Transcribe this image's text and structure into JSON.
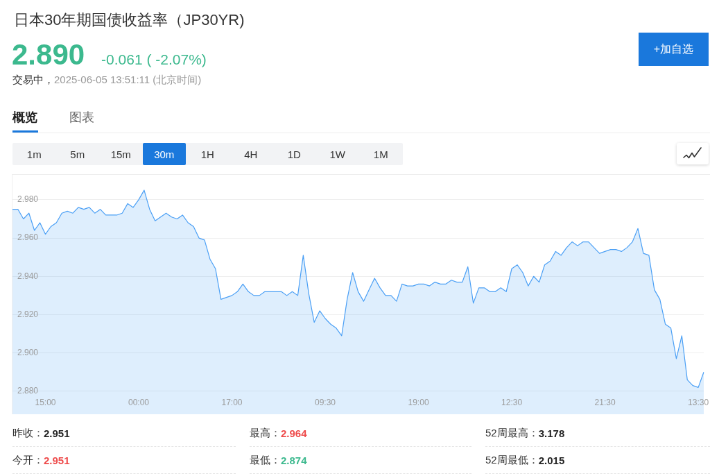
{
  "chart_data": {
    "type": "area",
    "title": "日本30年期国债收益率（JP30YR)",
    "annotations": [
      "2.890",
      "-0.061 ( -2.07%)",
      "交易中，",
      "2025-06-05 13:51:11 (北京时间)",
      "+加自选",
      "概览",
      "图表",
      "1m",
      "5m",
      "15m",
      "30m",
      "1H",
      "4H",
      "1D",
      "1W",
      "1M",
      "昨收：",
      "2.951",
      "最高：",
      "2.964",
      "52周最高：",
      "3.178",
      "今开：",
      "2.951",
      "最低：",
      "2.874",
      "52周最低：",
      "2.015"
    ],
    "categories": [
      null,
      null,
      null,
      null,
      null,
      null,
      "15:00",
      null,
      null,
      null,
      null,
      null,
      null,
      null,
      null,
      null,
      null,
      null,
      null,
      null,
      null,
      null,
      null,
      "00:00",
      null,
      null,
      null,
      null,
      null,
      null,
      null,
      null,
      null,
      null,
      null,
      null,
      null,
      null,
      null,
      null,
      "17:00",
      null,
      null,
      null,
      null,
      null,
      null,
      null,
      null,
      null,
      null,
      null,
      null,
      null,
      null,
      null,
      null,
      "09:30",
      null,
      null,
      null,
      null,
      null,
      null,
      null,
      null,
      null,
      null,
      null,
      null,
      null,
      null,
      null,
      null,
      "19:00",
      null,
      null,
      null,
      null,
      null,
      null,
      null,
      null,
      null,
      null,
      null,
      null,
      null,
      null,
      null,
      null,
      "12:30",
      null,
      null,
      null,
      null,
      null,
      null,
      null,
      null,
      null,
      null,
      null,
      null,
      null,
      null,
      null,
      null,
      "21:30",
      null,
      null,
      null,
      null,
      null,
      null,
      null,
      null,
      null,
      null,
      null,
      null,
      null,
      null,
      null,
      null,
      "13:30",
      null
    ],
    "series": [
      {
        "color": "#4a9ff5",
        "values": [
          2.975,
          2.975,
          2.97,
          2.973,
          2.964,
          2.968,
          2.962,
          2.966,
          2.968,
          2.973,
          2.974,
          2.973,
          2.976,
          2.975,
          2.976,
          2.973,
          2.975,
          2.972,
          2.972,
          2.972,
          2.973,
          2.978,
          2.976,
          2.98,
          2.985,
          2.975,
          2.969,
          2.971,
          2.973,
          2.971,
          2.97,
          2.972,
          2.968,
          2.966,
          2.96,
          2.959,
          2.949,
          2.944,
          2.928,
          2.929,
          2.93,
          2.932,
          2.936,
          2.932,
          2.93,
          2.93,
          2.932,
          2.932,
          2.932,
          2.932,
          2.93,
          2.932,
          2.93,
          2.951,
          2.931,
          2.916,
          2.922,
          2.918,
          2.915,
          2.913,
          2.909,
          2.928,
          2.942,
          2.932,
          2.927,
          2.933,
          2.939,
          2.934,
          2.93,
          2.93,
          2.927,
          2.936,
          2.935,
          2.935,
          2.936,
          2.936,
          2.935,
          2.937,
          2.936,
          2.936,
          2.938,
          2.937,
          2.937,
          2.945,
          2.926,
          2.934,
          2.934,
          2.932,
          2.932,
          2.934,
          2.932,
          2.944,
          2.946,
          2.942,
          2.935,
          2.94,
          2.937,
          2.946,
          2.948,
          2.953,
          2.951,
          2.955,
          2.958,
          2.956,
          2.958,
          2.958,
          2.955,
          2.952,
          2.953,
          2.954,
          2.954,
          2.953,
          2.955,
          2.958,
          2.965,
          2.952,
          2.951,
          2.933,
          2.928,
          2.915,
          2.913,
          2.897,
          2.909,
          2.886,
          2.883,
          2.882,
          2.89
        ]
      }
    ],
    "ylim": [
      2.868,
      2.993
    ],
    "yticks": [
      {
        "value": 2.88,
        "label": "2.880"
      },
      {
        "value": 2.9,
        "label": "2.900"
      },
      {
        "value": 2.92,
        "label": "2.920"
      },
      {
        "value": 2.94,
        "label": "2.940"
      },
      {
        "value": 2.96,
        "label": "2.960"
      },
      {
        "value": 2.98,
        "label": "2.980"
      }
    ],
    "grid": "y",
    "marker": "none"
  }
}
